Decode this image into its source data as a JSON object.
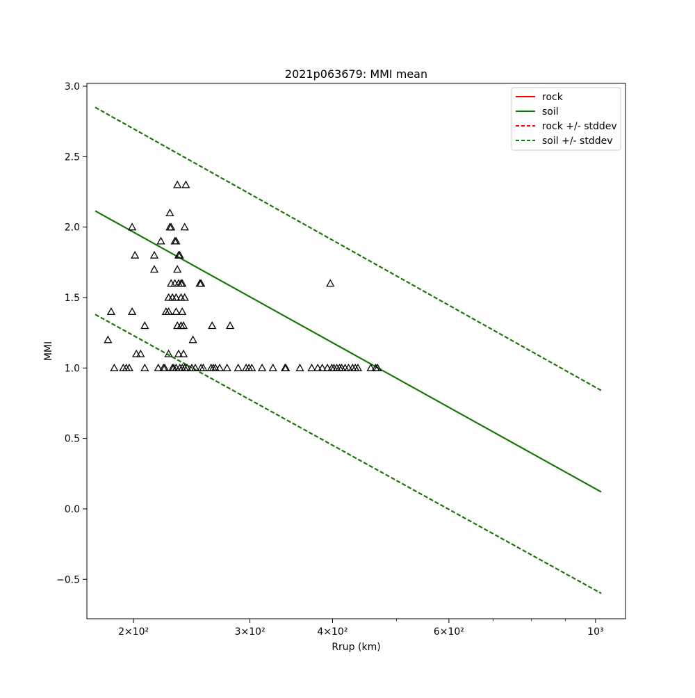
{
  "chart_data": {
    "type": "scatter",
    "title": "2021p063679: MMI mean",
    "xlabel": "Rrup (km)",
    "ylabel": "MMI",
    "xscale": "log",
    "xlim": [
      170,
      1110
    ],
    "ylim": [
      -0.78,
      3.02
    ],
    "x_ticks": [
      {
        "value": 200,
        "label": "2×10²"
      },
      {
        "value": 300,
        "label": "3×10²"
      },
      {
        "value": 400,
        "label": "4×10²"
      },
      {
        "value": 600,
        "label": "6×10²"
      },
      {
        "value": 1000,
        "label": "10³"
      }
    ],
    "y_ticks": [
      {
        "value": -0.5,
        "label": "−0.5"
      },
      {
        "value": 0.0,
        "label": "0.0"
      },
      {
        "value": 0.5,
        "label": "0.5"
      },
      {
        "value": 1.0,
        "label": "1.0"
      },
      {
        "value": 1.5,
        "label": "1.5"
      },
      {
        "value": 2.0,
        "label": "2.0"
      },
      {
        "value": 2.5,
        "label": "2.5"
      },
      {
        "value": 3.0,
        "label": "3.0"
      }
    ],
    "grid": false,
    "legend_position": "top-right",
    "lines": [
      {
        "name": "rock",
        "color": "#ff0000",
        "style": "solid",
        "x": [
          175,
          1020
        ],
        "y": [
          2.115,
          0.12
        ]
      },
      {
        "name": "soil",
        "color": "#008000",
        "style": "solid",
        "x": [
          175,
          1020
        ],
        "y": [
          2.115,
          0.12
        ]
      },
      {
        "name": "rock +/- stddev",
        "color": "#ff0000",
        "style": "dashed",
        "x": [
          175,
          1020
        ],
        "y": [
          2.85,
          0.84
        ]
      },
      {
        "name": "rock +/- stddev",
        "color": "#ff0000",
        "style": "dashed",
        "x": [
          175,
          1020
        ],
        "y": [
          1.38,
          -0.6
        ]
      },
      {
        "name": "soil +/- stddev",
        "color": "#008000",
        "style": "dashed",
        "x": [
          175,
          1020
        ],
        "y": [
          2.85,
          0.84
        ]
      },
      {
        "name": "soil +/- stddev",
        "color": "#008000",
        "style": "dashed",
        "x": [
          175,
          1020
        ],
        "y": [
          1.38,
          -0.6
        ]
      }
    ],
    "legend": [
      {
        "label": "rock",
        "color": "#ff0000",
        "style": "solid"
      },
      {
        "label": "soil",
        "color": "#008000",
        "style": "solid"
      },
      {
        "label": "rock +/- stddev",
        "color": "#ff0000",
        "style": "dashed"
      },
      {
        "label": "soil +/- stddev",
        "color": "#008000",
        "style": "dashed"
      }
    ],
    "points": [
      {
        "x": 183,
        "y": 1.2
      },
      {
        "x": 185,
        "y": 1.4
      },
      {
        "x": 187,
        "y": 1.0
      },
      {
        "x": 193,
        "y": 1.0
      },
      {
        "x": 195,
        "y": 1.0
      },
      {
        "x": 197,
        "y": 1.0
      },
      {
        "x": 199,
        "y": 2.0
      },
      {
        "x": 199,
        "y": 1.4
      },
      {
        "x": 201,
        "y": 1.8
      },
      {
        "x": 202,
        "y": 1.1
      },
      {
        "x": 205,
        "y": 1.1
      },
      {
        "x": 208,
        "y": 1.0
      },
      {
        "x": 208,
        "y": 1.3
      },
      {
        "x": 215,
        "y": 1.7
      },
      {
        "x": 215,
        "y": 1.8
      },
      {
        "x": 218,
        "y": 1.0
      },
      {
        "x": 220,
        "y": 1.9
      },
      {
        "x": 222,
        "y": 1.0
      },
      {
        "x": 223,
        "y": 1.0
      },
      {
        "x": 224,
        "y": 1.4
      },
      {
        "x": 226,
        "y": 1.4
      },
      {
        "x": 226,
        "y": 1.5
      },
      {
        "x": 226,
        "y": 1.1
      },
      {
        "x": 227,
        "y": 2.1
      },
      {
        "x": 227,
        "y": 2.0
      },
      {
        "x": 228,
        "y": 2.0
      },
      {
        "x": 228,
        "y": 1.6
      },
      {
        "x": 229,
        "y": 1.5
      },
      {
        "x": 229,
        "y": 1.0
      },
      {
        "x": 230,
        "y": 1.0
      },
      {
        "x": 231,
        "y": 1.9
      },
      {
        "x": 231,
        "y": 1.6
      },
      {
        "x": 232,
        "y": 1.4
      },
      {
        "x": 232,
        "y": 1.9
      },
      {
        "x": 232,
        "y": 1.5
      },
      {
        "x": 232,
        "y": 1.0
      },
      {
        "x": 233,
        "y": 1.7
      },
      {
        "x": 233,
        "y": 2.3
      },
      {
        "x": 233,
        "y": 1.3
      },
      {
        "x": 234,
        "y": 1.8
      },
      {
        "x": 234,
        "y": 1.1
      },
      {
        "x": 234,
        "y": 1.6
      },
      {
        "x": 235,
        "y": 1.0
      },
      {
        "x": 235,
        "y": 1.8
      },
      {
        "x": 236,
        "y": 1.5
      },
      {
        "x": 236,
        "y": 1.6
      },
      {
        "x": 236,
        "y": 1.3
      },
      {
        "x": 237,
        "y": 1.6
      },
      {
        "x": 237,
        "y": 1.4
      },
      {
        "x": 237,
        "y": 1.0
      },
      {
        "x": 238,
        "y": 1.3
      },
      {
        "x": 238,
        "y": 1.1
      },
      {
        "x": 239,
        "y": 2.0
      },
      {
        "x": 239,
        "y": 1.5
      },
      {
        "x": 239,
        "y": 1.0
      },
      {
        "x": 240,
        "y": 2.3
      },
      {
        "x": 241,
        "y": 1.0
      },
      {
        "x": 245,
        "y": 1.0
      },
      {
        "x": 246,
        "y": 1.2
      },
      {
        "x": 248,
        "y": 1.0
      },
      {
        "x": 252,
        "y": 1.6
      },
      {
        "x": 253,
        "y": 1.6
      },
      {
        "x": 253,
        "y": 1.0
      },
      {
        "x": 255,
        "y": 1.0
      },
      {
        "x": 262,
        "y": 1.0
      },
      {
        "x": 263,
        "y": 1.3
      },
      {
        "x": 264,
        "y": 1.0
      },
      {
        "x": 266,
        "y": 1.0
      },
      {
        "x": 270,
        "y": 1.0
      },
      {
        "x": 277,
        "y": 1.0
      },
      {
        "x": 280,
        "y": 1.3
      },
      {
        "x": 288,
        "y": 1.0
      },
      {
        "x": 296,
        "y": 1.0
      },
      {
        "x": 299,
        "y": 1.0
      },
      {
        "x": 302,
        "y": 1.0
      },
      {
        "x": 313,
        "y": 1.0
      },
      {
        "x": 325,
        "y": 1.0
      },
      {
        "x": 339,
        "y": 1.0
      },
      {
        "x": 340,
        "y": 1.0
      },
      {
        "x": 357,
        "y": 1.0
      },
      {
        "x": 372,
        "y": 1.0
      },
      {
        "x": 380,
        "y": 1.0
      },
      {
        "x": 386,
        "y": 1.0
      },
      {
        "x": 393,
        "y": 1.0
      },
      {
        "x": 397,
        "y": 1.6
      },
      {
        "x": 399,
        "y": 1.0
      },
      {
        "x": 402,
        "y": 1.0
      },
      {
        "x": 406,
        "y": 1.0
      },
      {
        "x": 410,
        "y": 1.0
      },
      {
        "x": 413,
        "y": 1.0
      },
      {
        "x": 418,
        "y": 1.0
      },
      {
        "x": 423,
        "y": 1.0
      },
      {
        "x": 429,
        "y": 1.0
      },
      {
        "x": 433,
        "y": 1.0
      },
      {
        "x": 437,
        "y": 1.0
      },
      {
        "x": 457,
        "y": 1.0
      },
      {
        "x": 465,
        "y": 1.0
      },
      {
        "x": 468,
        "y": 1.0
      }
    ]
  }
}
